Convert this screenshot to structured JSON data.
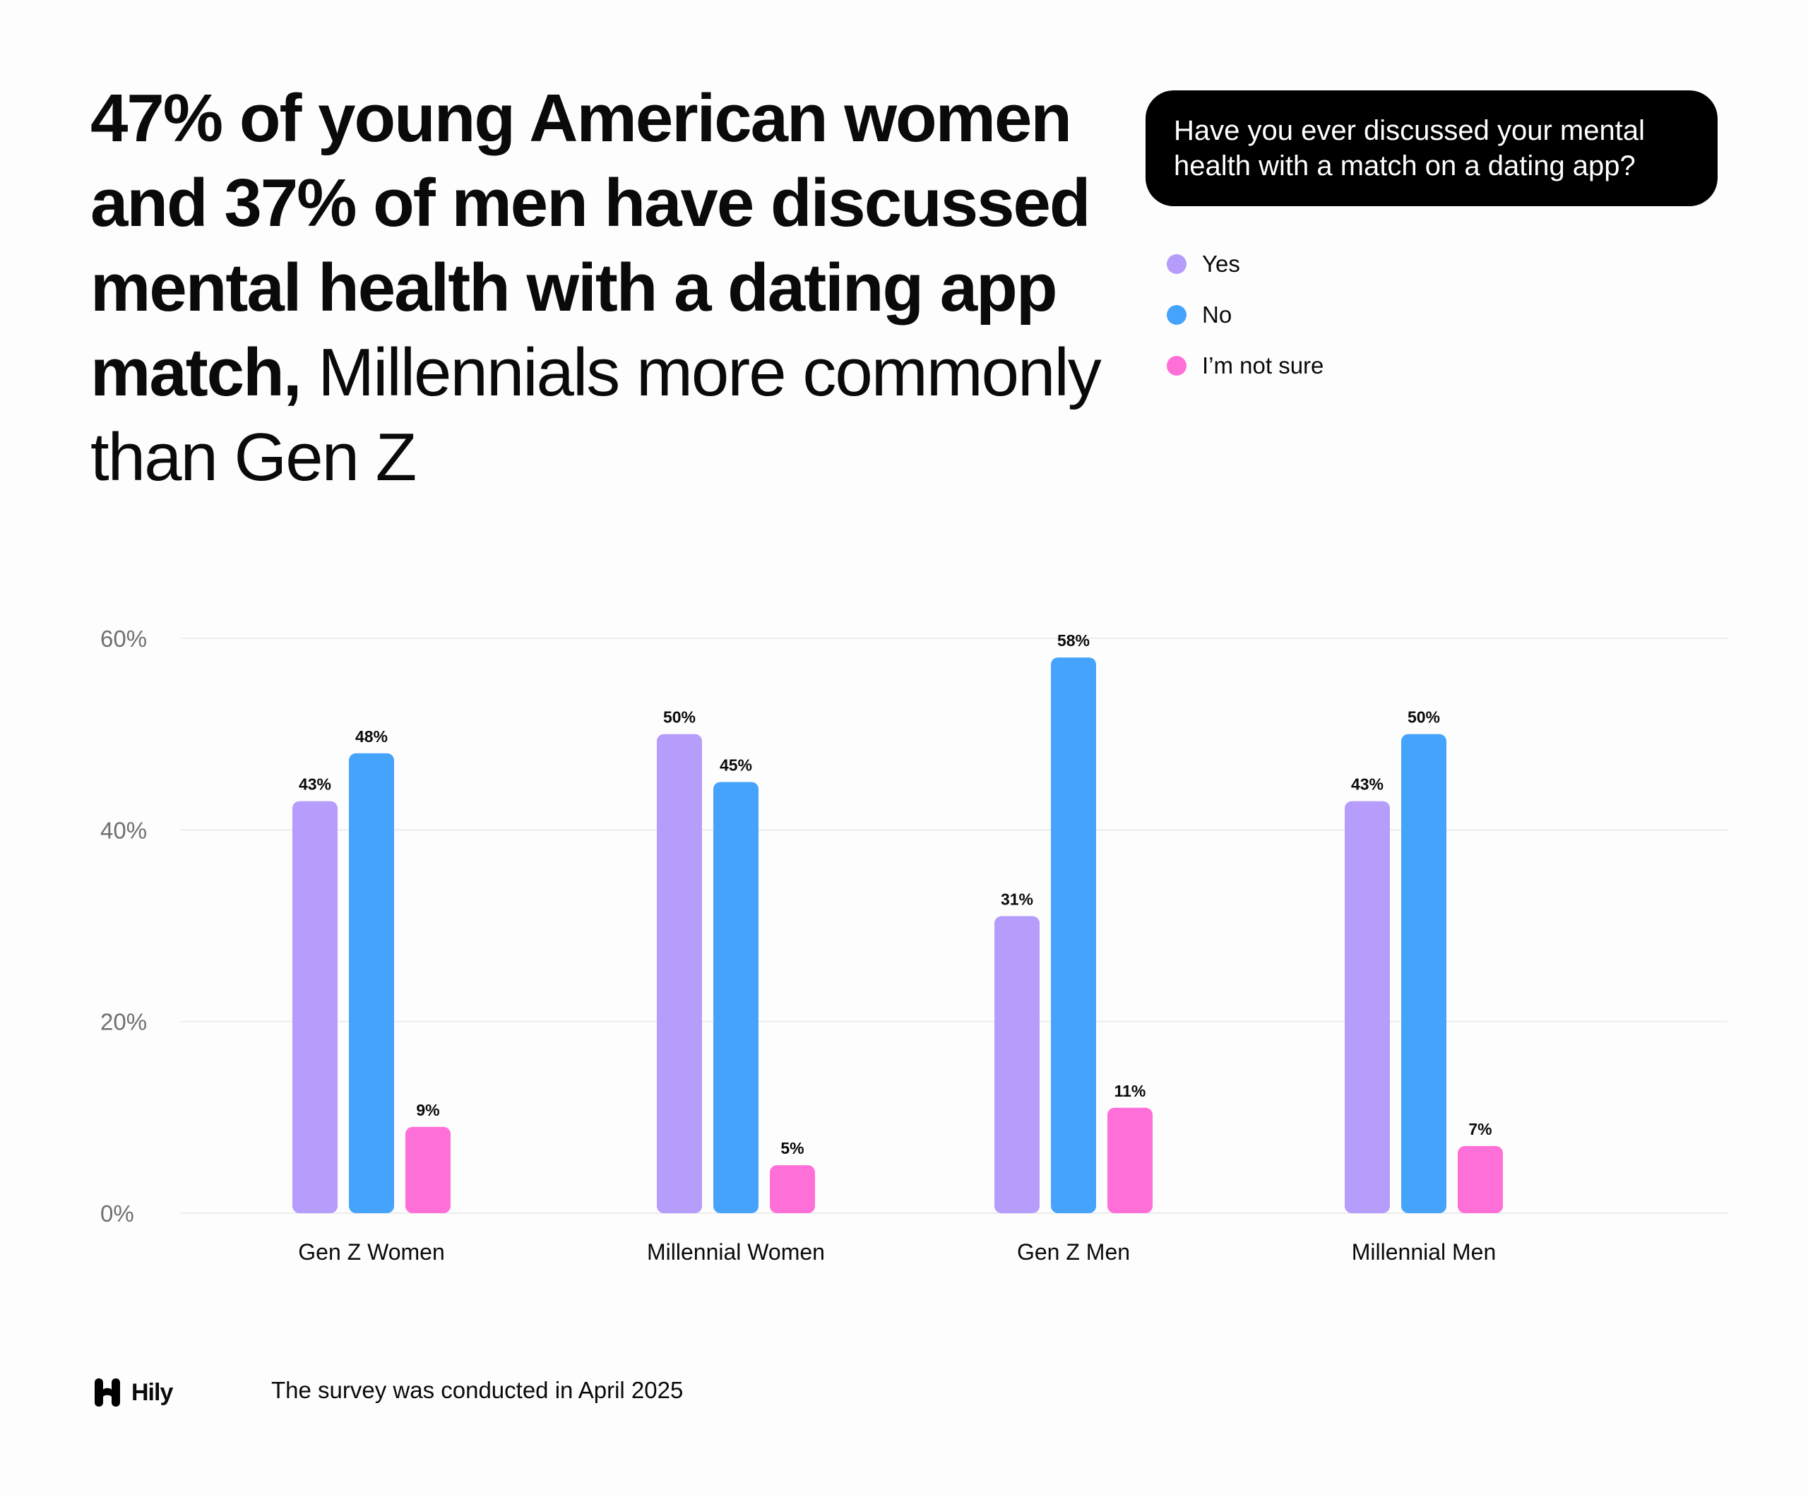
{
  "headline": {
    "bold": "47% of young American women and 37% of men have discussed mental health with a dating app match,",
    "regular": " Millennials more commonly than Gen Z"
  },
  "question": "Have you ever discussed your mental health with a match on a dating app?",
  "legend": [
    {
      "label": "Yes",
      "color": "#b69cfb"
    },
    {
      "label": "No",
      "color": "#45a3fc"
    },
    {
      "label": "I’m not sure",
      "color": "#ff6fd8"
    }
  ],
  "chart_data": {
    "type": "bar",
    "categories": [
      "Gen Z Women",
      "Millennial Women",
      "Gen Z Men",
      "Millennial Men"
    ],
    "series": [
      {
        "name": "Yes",
        "color": "#b69cfb",
        "values": [
          43,
          50,
          31,
          43
        ],
        "labels": [
          "43%",
          "50%",
          "31%",
          "43%"
        ]
      },
      {
        "name": "No",
        "color": "#45a3fc",
        "values": [
          48,
          45,
          58,
          50
        ],
        "labels": [
          "48%",
          "45%",
          "58%",
          "50%"
        ]
      },
      {
        "name": "I’m not sure",
        "color": "#ff6fd8",
        "values": [
          9,
          5,
          11,
          7
        ],
        "labels": [
          "9%",
          "5%",
          "11%",
          "7%"
        ]
      }
    ],
    "yticks": [
      0,
      20,
      40,
      60
    ],
    "ytick_labels": [
      "0%",
      "20%",
      "40%",
      "60%"
    ],
    "ylim": [
      0,
      60
    ],
    "grid": true,
    "legend_position": "top-right"
  },
  "footer": {
    "brand": "Hily",
    "note": "The survey was conducted in April 2025"
  }
}
